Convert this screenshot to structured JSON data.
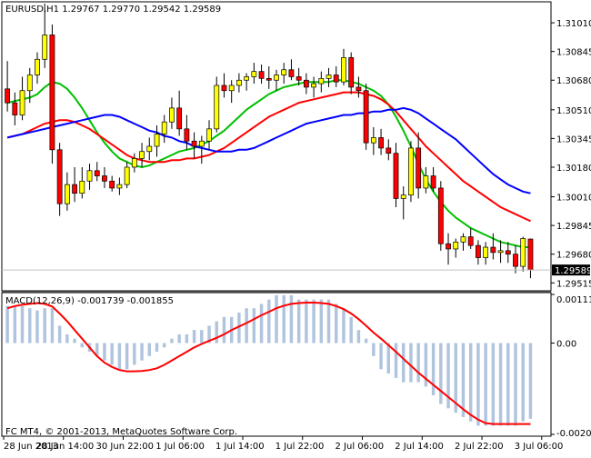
{
  "window": {
    "main_header": "EURUSD,H1  1.29767 1.29770 1.29542 1.29589",
    "macd_header": "MACD(12,26,9) -0.001739 -0.001855",
    "copyright": "FC MT4, © 2001-2013, MetaQuotes Software Corp.",
    "current_price_label": "1.29589"
  },
  "colors": {
    "bull_body": "#ffff00",
    "bear_body": "#ff0000",
    "wick": "#000000",
    "ma_fast": "#00c000",
    "ma_mid": "#ff0000",
    "ma_slow": "#0000ff",
    "macd_hist": "#b0c4de",
    "macd_signal": "#ff0000"
  },
  "chart_data": [
    {
      "type": "candlestick",
      "symbol": "EURUSD",
      "timeframe": "H1",
      "y_ticks": [
        "1.31010",
        "1.30845",
        "1.30680",
        "1.30510",
        "1.30345",
        "1.30180",
        "1.30010",
        "1.29845",
        "1.29680",
        "1.29515"
      ],
      "x_ticks": [
        "28 Jun 2013",
        "28 Jun 14:00",
        "30 Jun 22:00",
        "1 Jul 06:00",
        "1 Jul 14:00",
        "1 Jul 22:00",
        "2 Jul 06:00",
        "2 Jul 14:00",
        "2 Jul 22:00",
        "3 Jul 06:00"
      ],
      "ylim": [
        1.2948,
        1.3112
      ],
      "candles": [
        [
          1.3063,
          1.3079,
          1.305,
          1.3055
        ],
        [
          1.3055,
          1.3061,
          1.3042,
          1.3048
        ],
        [
          1.3048,
          1.307,
          1.3045,
          1.3062
        ],
        [
          1.3062,
          1.3075,
          1.3055,
          1.3071
        ],
        [
          1.3071,
          1.3084,
          1.3066,
          1.308
        ],
        [
          1.308,
          1.3112,
          1.3075,
          1.3094
        ],
        [
          1.3094,
          1.31,
          1.302,
          1.3028
        ],
        [
          1.3028,
          1.3032,
          1.299,
          1.2997
        ],
        [
          1.2997,
          1.3015,
          1.2993,
          1.3008
        ],
        [
          1.3008,
          1.3018,
          1.2998,
          1.3003
        ],
        [
          1.3003,
          1.3018,
          1.3,
          1.301
        ],
        [
          1.301,
          1.302,
          1.3005,
          1.3016
        ],
        [
          1.3016,
          1.3021,
          1.301,
          1.3013
        ],
        [
          1.3013,
          1.3018,
          1.3006,
          1.301
        ],
        [
          1.301,
          1.3013,
          1.3004,
          1.3006
        ],
        [
          1.3006,
          1.3012,
          1.3002,
          1.3008
        ],
        [
          1.3008,
          1.3021,
          1.3006,
          1.3018
        ],
        [
          1.3018,
          1.3026,
          1.3015,
          1.3023
        ],
        [
          1.3023,
          1.3032,
          1.3018,
          1.3027
        ],
        [
          1.3027,
          1.3035,
          1.3022,
          1.303
        ],
        [
          1.303,
          1.3042,
          1.3024,
          1.3037
        ],
        [
          1.3037,
          1.3048,
          1.3032,
          1.3044
        ],
        [
          1.3044,
          1.3058,
          1.304,
          1.3052
        ],
        [
          1.3052,
          1.3062,
          1.3036,
          1.304
        ],
        [
          1.304,
          1.3048,
          1.3028,
          1.3033
        ],
        [
          1.3033,
          1.3038,
          1.3023,
          1.303
        ],
        [
          1.303,
          1.3036,
          1.302,
          1.3033
        ],
        [
          1.3033,
          1.3045,
          1.3028,
          1.304
        ],
        [
          1.304,
          1.307,
          1.3038,
          1.3065
        ],
        [
          1.3065,
          1.3072,
          1.3058,
          1.3062
        ],
        [
          1.3062,
          1.3068,
          1.3055,
          1.3065
        ],
        [
          1.3065,
          1.3072,
          1.3061,
          1.3068
        ],
        [
          1.3068,
          1.3072,
          1.3062,
          1.307
        ],
        [
          1.307,
          1.3078,
          1.3066,
          1.3073
        ],
        [
          1.3073,
          1.3077,
          1.3066,
          1.3069
        ],
        [
          1.3069,
          1.3076,
          1.3063,
          1.3068
        ],
        [
          1.3068,
          1.3074,
          1.3062,
          1.3071
        ],
        [
          1.3071,
          1.3078,
          1.3066,
          1.3074
        ],
        [
          1.3074,
          1.308,
          1.3068,
          1.307
        ],
        [
          1.307,
          1.3075,
          1.3065,
          1.3068
        ],
        [
          1.3068,
          1.3072,
          1.306,
          1.3064
        ],
        [
          1.3064,
          1.307,
          1.3058,
          1.3066
        ],
        [
          1.3066,
          1.3073,
          1.3061,
          1.3069
        ],
        [
          1.3069,
          1.3075,
          1.3064,
          1.3071
        ],
        [
          1.3071,
          1.3076,
          1.3064,
          1.3067
        ],
        [
          1.3067,
          1.3086,
          1.3065,
          1.3081
        ],
        [
          1.3081,
          1.3084,
          1.306,
          1.3064
        ],
        [
          1.3064,
          1.307,
          1.3058,
          1.3062
        ],
        [
          1.3062,
          1.3066,
          1.3028,
          1.3032
        ],
        [
          1.3032,
          1.3041,
          1.3025,
          1.3035
        ],
        [
          1.3035,
          1.304,
          1.3025,
          1.3029
        ],
        [
          1.3029,
          1.3034,
          1.3022,
          1.3026
        ],
        [
          1.3026,
          1.3032,
          1.2995,
          1.3
        ],
        [
          1.3,
          1.3007,
          1.2988,
          1.3002
        ],
        [
          1.3002,
          1.3033,
          1.2998,
          1.3029
        ],
        [
          1.3029,
          1.3038,
          1.3,
          1.3006
        ],
        [
          1.3006,
          1.3018,
          1.3003,
          1.3013
        ],
        [
          1.3013,
          1.3018,
          1.3004,
          1.3006
        ],
        [
          1.3006,
          1.301,
          1.297,
          1.2974
        ],
        [
          1.2974,
          1.298,
          1.2962,
          1.2971
        ],
        [
          1.2971,
          1.2977,
          1.2966,
          1.2975
        ],
        [
          1.2975,
          1.298,
          1.297,
          1.2978
        ],
        [
          1.2978,
          1.2983,
          1.2971,
          1.2973
        ],
        [
          1.2973,
          1.2976,
          1.2962,
          1.2966
        ],
        [
          1.2966,
          1.2975,
          1.2962,
          1.2972
        ],
        [
          1.2972,
          1.298,
          1.2965,
          1.2969
        ],
        [
          1.2969,
          1.2976,
          1.2963,
          1.297
        ],
        [
          1.297,
          1.2975,
          1.2963,
          1.2968
        ],
        [
          1.2968,
          1.2973,
          1.2957,
          1.2961
        ],
        [
          1.2961,
          1.2978,
          1.2958,
          1.2977
        ],
        [
          1.29767,
          1.2977,
          1.29542,
          1.29589
        ]
      ],
      "moving_averages": {
        "green": [
          1.3055,
          1.3056,
          1.3057,
          1.3058,
          1.306,
          1.3064,
          1.3067,
          1.3066,
          1.3063,
          1.3058,
          1.3052,
          1.3045,
          1.3038,
          1.3032,
          1.3027,
          1.3023,
          1.3021,
          1.3019,
          1.3018,
          1.3019,
          1.3021,
          1.3023,
          1.3025,
          1.3027,
          1.3028,
          1.3029,
          1.3031,
          1.3033,
          1.3036,
          1.3039,
          1.3043,
          1.3047,
          1.3051,
          1.3054,
          1.3057,
          1.306,
          1.3062,
          1.3064,
          1.3065,
          1.3066,
          1.3067,
          1.3067,
          1.3067,
          1.3067,
          1.3068,
          1.3068,
          1.3067,
          1.3066,
          1.3064,
          1.3062,
          1.3059,
          1.3054,
          1.3047,
          1.3039,
          1.303,
          1.302,
          1.3011,
          1.3004,
          1.2998,
          1.2993,
          1.2989,
          1.2986,
          1.2983,
          1.2981,
          1.2979,
          1.2977,
          1.2975,
          1.2974,
          1.2973,
          1.2972,
          1.2972
        ],
        "red": [
          1.3035,
          1.3036,
          1.3037,
          1.3039,
          1.3041,
          1.3043,
          1.3044,
          1.3045,
          1.3045,
          1.3044,
          1.3042,
          1.304,
          1.3037,
          1.3034,
          1.3031,
          1.3028,
          1.3025,
          1.3023,
          1.3022,
          1.3021,
          1.3021,
          1.3021,
          1.3022,
          1.3022,
          1.3023,
          1.3023,
          1.3024,
          1.3025,
          1.3027,
          1.3029,
          1.3032,
          1.3035,
          1.3038,
          1.3041,
          1.3044,
          1.3047,
          1.3049,
          1.3051,
          1.3053,
          1.3055,
          1.3056,
          1.3057,
          1.3058,
          1.3059,
          1.306,
          1.3061,
          1.3061,
          1.3061,
          1.306,
          1.3059,
          1.3057,
          1.3054,
          1.305,
          1.3045,
          1.304,
          1.3035,
          1.303,
          1.3026,
          1.3022,
          1.3018,
          1.3014,
          1.301,
          1.3007,
          1.3004,
          1.3001,
          1.2998,
          1.2995,
          1.2993,
          1.2991,
          1.2989,
          1.2987
        ],
        "blue": [
          1.3035,
          1.3036,
          1.3037,
          1.3038,
          1.3039,
          1.304,
          1.3041,
          1.3042,
          1.3043,
          1.3044,
          1.3045,
          1.3046,
          1.3047,
          1.3048,
          1.3048,
          1.3047,
          1.3045,
          1.3043,
          1.3041,
          1.3039,
          1.3038,
          1.3036,
          1.3035,
          1.3033,
          1.3032,
          1.303,
          1.3029,
          1.3028,
          1.3027,
          1.3027,
          1.3027,
          1.3028,
          1.3028,
          1.3029,
          1.3031,
          1.3033,
          1.3035,
          1.3037,
          1.3039,
          1.3041,
          1.3043,
          1.3044,
          1.3045,
          1.3046,
          1.3047,
          1.3048,
          1.3048,
          1.3049,
          1.3049,
          1.305,
          1.305,
          1.3051,
          1.3051,
          1.3052,
          1.3051,
          1.3049,
          1.3046,
          1.3043,
          1.304,
          1.3037,
          1.3034,
          1.303,
          1.3026,
          1.3022,
          1.3018,
          1.3014,
          1.3011,
          1.3008,
          1.3006,
          1.3004,
          1.3003
        ]
      }
    },
    {
      "type": "bar",
      "indicator": "MACD(12,26,9)",
      "y_ticks": [
        "0.001118",
        "0.00",
        "-0.002099"
      ],
      "ylim": [
        -0.002099,
        0.001118
      ],
      "histogram": [
        0.00085,
        0.00085,
        0.00085,
        0.0008,
        0.00075,
        0.0008,
        0.0008,
        0.0004,
        0.0002,
        0.0001,
        -0.0001,
        -0.0002,
        -0.0003,
        -0.0004,
        -0.0005,
        -0.0006,
        -0.0006,
        -0.0005,
        -0.0004,
        -0.0003,
        -0.0002,
        -0.0001,
        0.0001,
        0.0002,
        0.0002,
        0.0003,
        0.0003,
        0.0004,
        0.0005,
        0.0006,
        0.0006,
        0.0007,
        0.0008,
        0.0008,
        0.0009,
        0.001,
        0.0011,
        0.0011,
        0.0011,
        0.001,
        0.001,
        0.001,
        0.001,
        0.001,
        0.0009,
        0.0008,
        0.0006,
        0.0003,
        0.0001,
        -0.0003,
        -0.0006,
        -0.0007,
        -0.0008,
        -0.0009,
        -0.0009,
        -0.0009,
        -0.001,
        -0.0012,
        -0.0014,
        -0.0015,
        -0.0016,
        -0.0017,
        -0.0018,
        -0.0019,
        -0.0019,
        -0.0019,
        -0.0019,
        -0.0019,
        -0.0019,
        -0.0018,
        -0.00174
      ],
      "signal": [
        0.0008,
        0.00085,
        0.00088,
        0.0009,
        0.00092,
        0.0009,
        0.00084,
        0.00068,
        0.0005,
        0.0003,
        0.0001,
        -0.0001,
        -0.0003,
        -0.00045,
        -0.00055,
        -0.00062,
        -0.00065,
        -0.00065,
        -0.00064,
        -0.00062,
        -0.00058,
        -0.0005,
        -0.0004,
        -0.0003,
        -0.0002,
        -0.0001,
        -2e-05,
        5e-05,
        0.00012,
        0.0002,
        0.0003,
        0.00038,
        0.00046,
        0.00055,
        0.00064,
        0.00072,
        0.0008,
        0.00086,
        0.0009,
        0.00092,
        0.00093,
        0.00093,
        0.00092,
        0.0009,
        0.00085,
        0.00078,
        0.00068,
        0.00055,
        0.0004,
        0.00024,
        0.0001,
        -5e-05,
        -0.0002,
        -0.00036,
        -0.00052,
        -0.00068,
        -0.00082,
        -0.00096,
        -0.0011,
        -0.00124,
        -0.00138,
        -0.00152,
        -0.00165,
        -0.00176,
        -0.00184,
        -0.00186,
        -0.00186,
        -0.00186,
        -0.00186,
        -0.00186,
        -0.00186
      ]
    }
  ]
}
